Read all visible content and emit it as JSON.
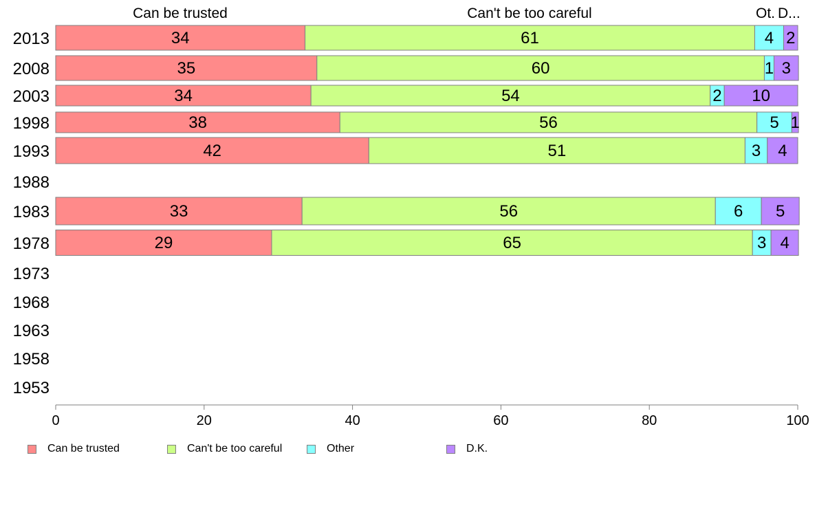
{
  "chart_data": {
    "type": "bar",
    "orientation": "horizontal",
    "stacked": true,
    "categories": [
      "2013",
      "2008",
      "2003",
      "1998",
      "1993",
      "1988",
      "1983",
      "1978",
      "1973",
      "1968",
      "1963",
      "1958",
      "1953"
    ],
    "series": [
      {
        "name": "Can be trusted",
        "color": "#ff8a8a",
        "values": [
          33.6,
          35.2,
          34.4,
          38.3,
          42.2,
          null,
          33.2,
          29.1,
          null,
          null,
          null,
          null,
          null
        ],
        "labels": [
          "34",
          "35",
          "34",
          "38",
          "42",
          "",
          "33",
          "29",
          "",
          "",
          "",
          "",
          ""
        ]
      },
      {
        "name": "Can't be too careful",
        "color": "#ccff88",
        "values": [
          60.6,
          60.3,
          53.8,
          56.2,
          50.7,
          null,
          55.7,
          64.8,
          null,
          null,
          null,
          null,
          null
        ],
        "labels": [
          "61",
          "60",
          "54",
          "56",
          "51",
          "",
          "56",
          "65",
          "",
          "",
          "",
          "",
          ""
        ]
      },
      {
        "name": "Other",
        "color": "#88ffff",
        "values": [
          3.9,
          1.3,
          1.9,
          4.7,
          3.0,
          null,
          6.2,
          2.5,
          null,
          null,
          null,
          null,
          null
        ],
        "labels": [
          "4",
          "1",
          "2",
          "5",
          "3",
          "",
          "6",
          "3",
          "",
          "",
          "",
          "",
          ""
        ]
      },
      {
        "name": "D.K.",
        "color": "#bb88ff",
        "values": [
          1.9,
          3.3,
          9.9,
          0.9,
          4.1,
          null,
          5.1,
          3.7,
          null,
          null,
          null,
          null,
          null
        ],
        "labels": [
          "2",
          "3",
          "10",
          "1",
          "4",
          "",
          "5",
          "4",
          "",
          "",
          "",
          "",
          ""
        ]
      }
    ],
    "column_headers": [
      "Can be trusted",
      "Can't be too careful",
      "Ot.",
      "D..."
    ],
    "xlim": [
      0,
      100
    ],
    "xticks": [
      "0",
      "20",
      "40",
      "60",
      "80",
      "100"
    ],
    "grid": false,
    "legend_position": "bottom"
  }
}
